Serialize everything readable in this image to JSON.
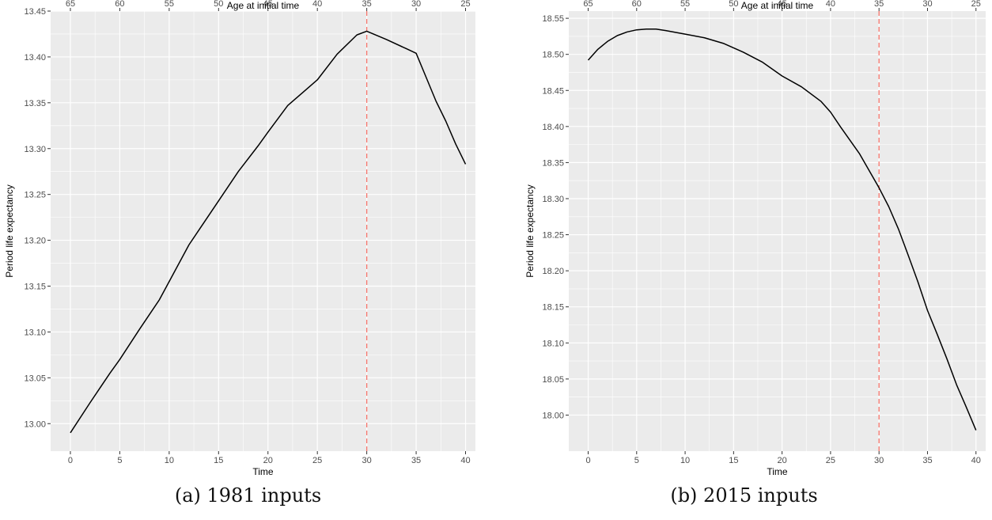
{
  "chart_data": [
    {
      "type": "line",
      "caption": "(a) 1981 inputs",
      "xlabel": "Time",
      "ylabel": "Period life expectancy",
      "top_xlabel": "Age at initial time",
      "xlim": [
        -2,
        41
      ],
      "ylim": [
        12.97,
        13.45
      ],
      "x_ticks": [
        0,
        5,
        10,
        15,
        20,
        25,
        30,
        35,
        40
      ],
      "y_ticks": [
        13.0,
        13.05,
        13.1,
        13.15,
        13.2,
        13.25,
        13.3,
        13.35,
        13.4,
        13.45
      ],
      "y_tick_labels": [
        "13.00",
        "13.05",
        "13.10",
        "13.15",
        "13.20",
        "13.25",
        "13.30",
        "13.35",
        "13.40",
        "13.45"
      ],
      "top_x_ticks": [
        0,
        5,
        10,
        15,
        20,
        25,
        30,
        35,
        40
      ],
      "top_x_tick_labels": [
        "65",
        "60",
        "55",
        "50",
        "45",
        "40",
        "35",
        "30",
        "25"
      ],
      "vline": {
        "x": 30,
        "color": "#f8766d"
      },
      "grid": true,
      "colors": {
        "panel": "#ebebeb",
        "grid": "#ffffff",
        "line": "#000000",
        "axis_text": "#4d4d4d"
      },
      "series": [
        {
          "x": [
            0,
            2,
            4,
            5,
            7,
            9,
            10,
            12,
            15,
            17,
            19,
            20,
            22,
            25,
            27,
            29,
            30,
            32,
            34,
            35,
            36,
            37,
            38,
            39,
            40
          ],
          "values": [
            12.99,
            13.023,
            13.055,
            13.07,
            13.103,
            13.135,
            13.155,
            13.195,
            13.243,
            13.275,
            13.303,
            13.318,
            13.347,
            13.375,
            13.403,
            13.424,
            13.428,
            13.419,
            13.409,
            13.404,
            13.378,
            13.352,
            13.33,
            13.305,
            13.283
          ]
        }
      ]
    },
    {
      "type": "line",
      "caption": "(b) 2015 inputs",
      "xlabel": "Time",
      "ylabel": "Period life expectancy",
      "top_xlabel": "Age at initial time",
      "xlim": [
        -2,
        41
      ],
      "ylim": [
        17.95,
        18.56
      ],
      "x_ticks": [
        0,
        5,
        10,
        15,
        20,
        25,
        30,
        35,
        40
      ],
      "y_ticks": [
        18.0,
        18.05,
        18.1,
        18.15,
        18.2,
        18.25,
        18.3,
        18.35,
        18.4,
        18.45,
        18.5,
        18.55
      ],
      "y_tick_labels": [
        "18.00",
        "18.05",
        "18.10",
        "18.15",
        "18.20",
        "18.25",
        "18.30",
        "18.35",
        "18.40",
        "18.45",
        "18.50",
        "18.55"
      ],
      "top_x_ticks": [
        0,
        5,
        10,
        15,
        20,
        25,
        30,
        35,
        40
      ],
      "top_x_tick_labels": [
        "65",
        "60",
        "55",
        "50",
        "45",
        "40",
        "35",
        "30",
        "25"
      ],
      "vline": {
        "x": 30,
        "color": "#f8766d"
      },
      "grid": true,
      "colors": {
        "panel": "#ebebeb",
        "grid": "#ffffff",
        "line": "#000000",
        "axis_text": "#4d4d4d"
      },
      "series": [
        {
          "x": [
            0,
            1,
            2,
            3,
            4,
            5,
            6,
            7,
            8,
            10,
            12,
            14,
            16,
            18,
            20,
            22,
            24,
            25,
            26,
            28,
            30,
            31,
            32,
            33,
            34,
            35,
            36,
            37,
            38,
            39,
            40
          ],
          "values": [
            18.492,
            18.507,
            18.518,
            18.526,
            18.531,
            18.534,
            18.535,
            18.535,
            18.533,
            18.528,
            18.523,
            18.515,
            18.503,
            18.489,
            18.47,
            18.455,
            18.435,
            18.42,
            18.4,
            18.362,
            18.315,
            18.289,
            18.258,
            18.222,
            18.185,
            18.145,
            18.112,
            18.078,
            18.042,
            18.011,
            17.979
          ]
        }
      ]
    }
  ]
}
